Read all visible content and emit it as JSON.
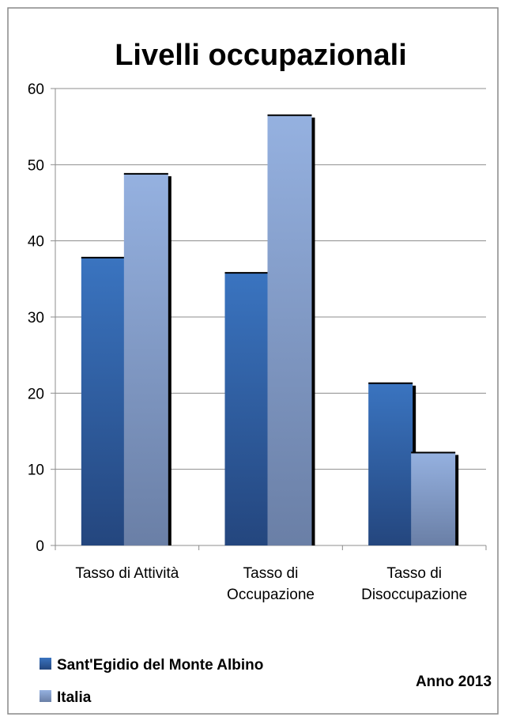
{
  "chart_data": {
    "type": "bar",
    "title": "Livelli occupazionali",
    "categories": [
      [
        "Tasso di Attività"
      ],
      [
        "Tasso di",
        "Occupazione"
      ],
      [
        "Tasso di",
        "Disoccupazione"
      ]
    ],
    "series": [
      {
        "name": "Sant'Egidio del Monte Albino",
        "values": [
          37.8,
          35.8,
          21.3
        ],
        "color": "#3366a8"
      },
      {
        "name": "Italia",
        "values": [
          48.8,
          56.5,
          12.2
        ],
        "color": "#8aa6d6"
      }
    ],
    "ylim": [
      0,
      60
    ],
    "yticks": [
      0,
      10,
      20,
      30,
      40,
      50,
      60
    ],
    "grid": true,
    "legend": "bottom-left",
    "annotation": "Anno 2013"
  }
}
